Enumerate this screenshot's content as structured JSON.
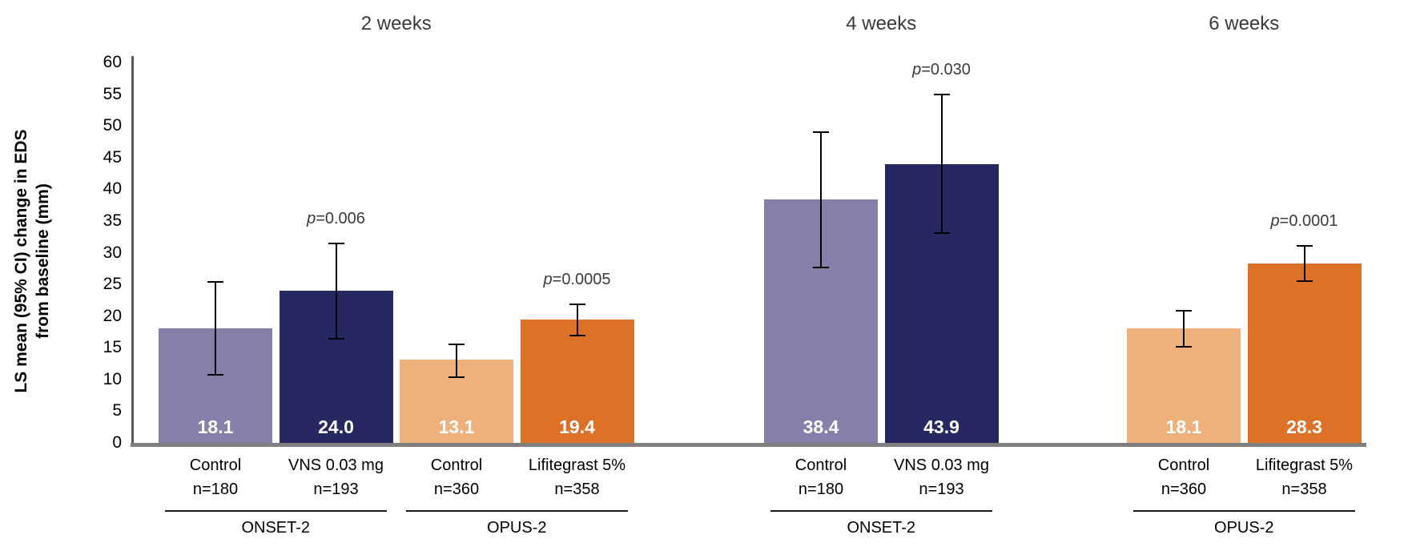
{
  "colors": {
    "control_onset": "#8580AA",
    "vns": "#262961",
    "control_opus": "#EFB17C",
    "lifitegrast": "#DC7127",
    "baseline_line": "#7F7F7F",
    "axis_line": "#595959",
    "value_label_text": "#FFFFFF",
    "text": "#000000"
  },
  "chart_data": {
    "type": "bar",
    "title": "",
    "ylabel_line1": "LS mean (95% CI) change in EDS",
    "ylabel_line2": "from baseline (mm)",
    "y_axis": {
      "min": 0,
      "max": 60,
      "step": 5
    },
    "grid": "off",
    "legend": "none",
    "groups": [
      {
        "header": "2 weeks",
        "bars": [
          {
            "label": "Control",
            "n": "n=180",
            "value": 18.1,
            "value_label": "18.1",
            "ci_low": 10.7,
            "ci_high": 25.4,
            "color": "control_onset"
          },
          {
            "label": "VNS 0.03 mg",
            "n": "n=193",
            "value": 24.0,
            "value_label": "24.0",
            "ci_low": 16.4,
            "ci_high": 31.4,
            "color": "vns",
            "p_value": "p=0.006"
          },
          {
            "label": "Control",
            "n": "n=360",
            "value": 13.1,
            "value_label": "13.1",
            "ci_low": 10.3,
            "ci_high": 15.5,
            "color": "control_opus"
          },
          {
            "label": "Lifitegrast 5%",
            "n": "n=358",
            "value": 19.4,
            "value_label": "19.4",
            "ci_low": 16.9,
            "ci_high": 21.9,
            "color": "lifitegrast",
            "p_value": "p=0.0005"
          }
        ],
        "studies": [
          {
            "label": "ONSET-2",
            "bar_start": 0,
            "bar_end": 1
          },
          {
            "label": "OPUS-2",
            "bar_start": 2,
            "bar_end": 3
          }
        ]
      },
      {
        "header": "4 weeks",
        "bars": [
          {
            "label": "Control",
            "n": "n=180",
            "value": 38.4,
            "value_label": "38.4",
            "ci_low": 27.7,
            "ci_high": 49.0,
            "color": "control_onset"
          },
          {
            "label": "VNS 0.03 mg",
            "n": "n=193",
            "value": 43.9,
            "value_label": "43.9",
            "ci_low": 33.1,
            "ci_high": 54.9,
            "color": "vns",
            "p_value": "p=0.030"
          }
        ],
        "studies": [
          {
            "label": "ONSET-2",
            "bar_start": 0,
            "bar_end": 1
          }
        ]
      },
      {
        "header": "6 weeks",
        "bars": [
          {
            "label": "Control",
            "n": "n=360",
            "value": 18.1,
            "value_label": "18.1",
            "ci_low": 15.1,
            "ci_high": 20.8,
            "color": "control_opus"
          },
          {
            "label": "Lifitegrast 5%",
            "n": "n=358",
            "value": 28.3,
            "value_label": "28.3",
            "ci_low": 25.5,
            "ci_high": 31.1,
            "color": "lifitegrast",
            "p_value": "p=0.0001"
          }
        ],
        "studies": [
          {
            "label": "OPUS-2",
            "bar_start": 0,
            "bar_end": 1
          }
        ]
      }
    ]
  }
}
